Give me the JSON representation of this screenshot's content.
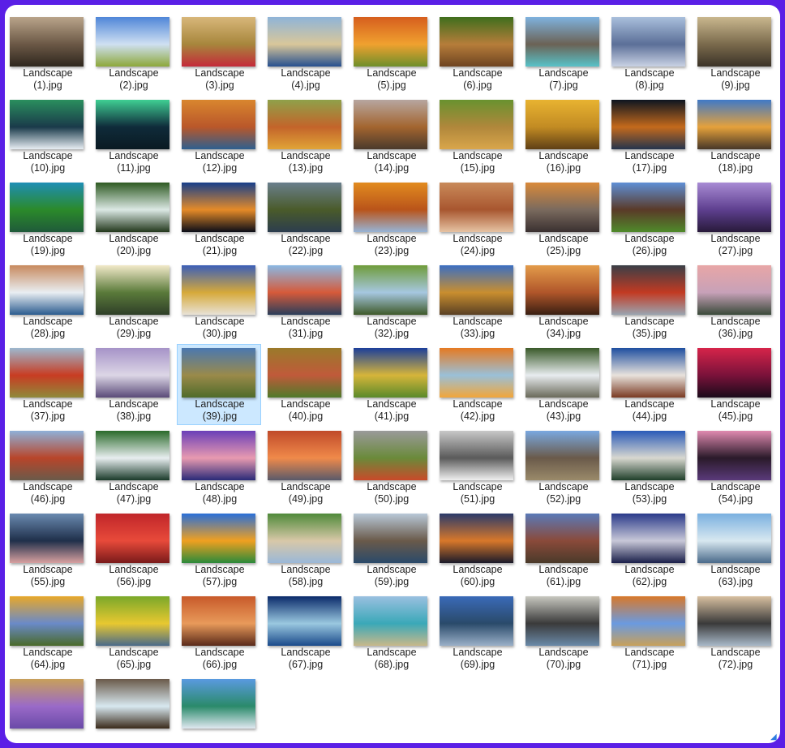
{
  "file_prefix": "Landscape",
  "selected_index": 39,
  "file_count": 75,
  "files": [
    {
      "line1": "Landscape",
      "line2": "(1).jpg",
      "colors": [
        "#b9a48a",
        "#6b5846",
        "#2f271e"
      ]
    },
    {
      "line1": "Landscape",
      "line2": "(2).jpg",
      "colors": [
        "#4f86d8",
        "#cfe0f2",
        "#8da83a"
      ]
    },
    {
      "line1": "Landscape",
      "line2": "(3).jpg",
      "colors": [
        "#d8b77a",
        "#a7863c",
        "#c42a3a"
      ]
    },
    {
      "line1": "Landscape",
      "line2": "(4).jpg",
      "colors": [
        "#8fb4d8",
        "#d9c79a",
        "#27508f"
      ]
    },
    {
      "line1": "Landscape",
      "line2": "(5).jpg",
      "colors": [
        "#d65e1e",
        "#f0a12f",
        "#6e8f2a"
      ]
    },
    {
      "line1": "Landscape",
      "line2": "(6).jpg",
      "colors": [
        "#3f6e1d",
        "#b67d3a",
        "#6e4421"
      ]
    },
    {
      "line1": "Landscape",
      "line2": "(7).jpg",
      "colors": [
        "#7fb2de",
        "#6b6255",
        "#58c2c8"
      ]
    },
    {
      "line1": "Landscape",
      "line2": "(8).jpg",
      "colors": [
        "#a9bfdc",
        "#5b6f98",
        "#c9d2e4"
      ]
    },
    {
      "line1": "Landscape",
      "line2": "(9).jpg",
      "colors": [
        "#c9b78e",
        "#7a6a4c",
        "#3b3328"
      ]
    },
    {
      "line1": "Landscape",
      "line2": "(10).jpg",
      "colors": [
        "#2a8f5e",
        "#1a3a4a",
        "#e8eef4"
      ]
    },
    {
      "line1": "Landscape",
      "line2": "(11).jpg",
      "colors": [
        "#3fcf93",
        "#0f2b3a",
        "#0a1a22"
      ]
    },
    {
      "line1": "Landscape",
      "line2": "(12).jpg",
      "colors": [
        "#d9862e",
        "#b9572a",
        "#2e5f8f"
      ]
    },
    {
      "line1": "Landscape",
      "line2": "(13).jpg",
      "colors": [
        "#8fa14a",
        "#c3642a",
        "#e1a437"
      ]
    },
    {
      "line1": "Landscape",
      "line2": "(14).jpg",
      "colors": [
        "#b7a6a0",
        "#a3652f",
        "#4a3a2c"
      ]
    },
    {
      "line1": "Landscape",
      "line2": "(15).jpg",
      "colors": [
        "#69922f",
        "#b0873b",
        "#d9a64b"
      ]
    },
    {
      "line1": "Landscape",
      "line2": "(16).jpg",
      "colors": [
        "#e8b331",
        "#c28b23",
        "#5f3f15"
      ]
    },
    {
      "line1": "Landscape",
      "line2": "(17).jpg",
      "colors": [
        "#0d1520",
        "#c46a1c",
        "#25344c"
      ]
    },
    {
      "line1": "Landscape",
      "line2": "(18).jpg",
      "colors": [
        "#3f79c7",
        "#e5a13b",
        "#473728"
      ]
    },
    {
      "line1": "Landscape",
      "line2": "(19).jpg",
      "colors": [
        "#1e8eb5",
        "#2b8a2a",
        "#1f5a3a"
      ]
    },
    {
      "line1": "Landscape",
      "line2": "(20).jpg",
      "colors": [
        "#2e5a22",
        "#dbe8e4",
        "#23381c"
      ]
    },
    {
      "line1": "Landscape",
      "line2": "(21).jpg",
      "colors": [
        "#173f8a",
        "#e58b28",
        "#0b0d18"
      ]
    },
    {
      "line1": "Landscape",
      "line2": "(22).jpg",
      "colors": [
        "#6a7f8c",
        "#4a5b2a",
        "#2c3d4e"
      ]
    },
    {
      "line1": "Landscape",
      "line2": "(23).jpg",
      "colors": [
        "#e28b1f",
        "#b9541a",
        "#97b4d6"
      ]
    },
    {
      "line1": "Landscape",
      "line2": "(24).jpg",
      "colors": [
        "#c98a5a",
        "#a8562f",
        "#e6c3a3"
      ]
    },
    {
      "line1": "Landscape",
      "line2": "(25).jpg",
      "colors": [
        "#d98a3a",
        "#7a6a5e",
        "#3a3030"
      ]
    },
    {
      "line1": "Landscape",
      "line2": "(26).jpg",
      "colors": [
        "#5f8fd6",
        "#5a3a28",
        "#4f8a2a"
      ]
    },
    {
      "line1": "Landscape",
      "line2": "(27).jpg",
      "colors": [
        "#a88bd4",
        "#5e3f8f",
        "#281a3a"
      ]
    },
    {
      "line1": "Landscape",
      "line2": "(28).jpg",
      "colors": [
        "#c78a5e",
        "#e9eef2",
        "#2b5c8f"
      ]
    },
    {
      "line1": "Landscape",
      "line2": "(29).jpg",
      "colors": [
        "#f2e9c9",
        "#5a7a3a",
        "#2f3f28"
      ]
    },
    {
      "line1": "Landscape",
      "line2": "(30).jpg",
      "colors": [
        "#3b5fb8",
        "#d6a93a",
        "#e8e2d6"
      ]
    },
    {
      "line1": "Landscape",
      "line2": "(31).jpg",
      "colors": [
        "#8ab8e4",
        "#d65a3a",
        "#2a3e5a"
      ]
    },
    {
      "line1": "Landscape",
      "line2": "(32).jpg",
      "colors": [
        "#6f9c3a",
        "#a6c7e0",
        "#3f5a2a"
      ]
    },
    {
      "line1": "Landscape",
      "line2": "(33).jpg",
      "colors": [
        "#3b6fc2",
        "#c98e2f",
        "#5a4024"
      ]
    },
    {
      "line1": "Landscape",
      "line2": "(34).jpg",
      "colors": [
        "#e39b4a",
        "#b0562a",
        "#3a1f12"
      ]
    },
    {
      "line1": "Landscape",
      "line2": "(35).jpg",
      "colors": [
        "#3a3f47",
        "#c23a22",
        "#9aa4b0"
      ]
    },
    {
      "line1": "Landscape",
      "line2": "(36).jpg",
      "colors": [
        "#e8a6a6",
        "#c7a1b8",
        "#3a4a3a"
      ]
    },
    {
      "line1": "Landscape",
      "line2": "(37).jpg",
      "colors": [
        "#9db8cf",
        "#c83c22",
        "#8f8a3a"
      ]
    },
    {
      "line1": "Landscape",
      "line2": "(38).jpg",
      "colors": [
        "#a693c8",
        "#dcd6e6",
        "#5a4a78"
      ]
    },
    {
      "line1": "Landscape",
      "line2": "(39).jpg",
      "colors": [
        "#4b78b0",
        "#9a8a4a",
        "#4f6b2a"
      ]
    },
    {
      "line1": "Landscape",
      "line2": "(40).jpg",
      "colors": [
        "#9a7a2a",
        "#c05a3a",
        "#4f7a2a"
      ]
    },
    {
      "line1": "Landscape",
      "line2": "(41).jpg",
      "colors": [
        "#1c3f9a",
        "#d6b53a",
        "#5a8a2a"
      ]
    },
    {
      "line1": "Landscape",
      "line2": "(42).jpg",
      "colors": [
        "#e57a22",
        "#9ac0d8",
        "#f2a63a"
      ]
    },
    {
      "line1": "Landscape",
      "line2": "(43).jpg",
      "colors": [
        "#3a5a2a",
        "#e8ecef",
        "#6a6a5a"
      ]
    },
    {
      "line1": "Landscape",
      "line2": "(44).jpg",
      "colors": [
        "#1f4fa0",
        "#e8e2dc",
        "#7a3a22"
      ]
    },
    {
      "line1": "Landscape",
      "line2": "(45).jpg",
      "colors": [
        "#d6244a",
        "#7a123a",
        "#1a0a1a"
      ]
    },
    {
      "line1": "Landscape",
      "line2": "(46).jpg",
      "colors": [
        "#8fb0d8",
        "#b8452a",
        "#6a5a4a"
      ]
    },
    {
      "line1": "Landscape",
      "line2": "(47).jpg",
      "colors": [
        "#2a6a2a",
        "#e8eef0",
        "#1a3a2a"
      ]
    },
    {
      "line1": "Landscape",
      "line2": "(48).jpg",
      "colors": [
        "#6a3fb8",
        "#e89ab0",
        "#2a2a78"
      ]
    },
    {
      "line1": "Landscape",
      "line2": "(49).jpg",
      "colors": [
        "#c04a2a",
        "#f08a4a",
        "#5a5a6a"
      ]
    },
    {
      "line1": "Landscape",
      "line2": "(50).jpg",
      "colors": [
        "#9a9a9a",
        "#6a8a3a",
        "#c94a2a"
      ]
    },
    {
      "line1": "Landscape",
      "line2": "(51).jpg",
      "colors": [
        "#c8c8c8",
        "#5a5a5a",
        "#f0f0f0"
      ]
    },
    {
      "line1": "Landscape",
      "line2": "(52).jpg",
      "colors": [
        "#7aa8e0",
        "#6a5a4a",
        "#9a8a6a"
      ]
    },
    {
      "line1": "Landscape",
      "line2": "(53).jpg",
      "colors": [
        "#2a5ab8",
        "#d8d8d0",
        "#1f3f2a"
      ]
    },
    {
      "line1": "Landscape",
      "line2": "(54).jpg",
      "colors": [
        "#e08ab0",
        "#2a1a2a",
        "#5a3a7a"
      ]
    },
    {
      "line1": "Landscape",
      "line2": "(55).jpg",
      "colors": [
        "#6a8ab0",
        "#1f2f4a",
        "#d8a0a0"
      ]
    },
    {
      "line1": "Landscape",
      "line2": "(56).jpg",
      "colors": [
        "#c0262a",
        "#e84a3a",
        "#7a1a1a"
      ]
    },
    {
      "line1": "Landscape",
      "line2": "(57).jpg",
      "colors": [
        "#2a6fd8",
        "#f0a020",
        "#2a8a3a"
      ]
    },
    {
      "line1": "Landscape",
      "line2": "(58).jpg",
      "colors": [
        "#4f8a3a",
        "#d8c8a8",
        "#9ab8d8"
      ]
    },
    {
      "line1": "Landscape",
      "line2": "(59).jpg",
      "colors": [
        "#b8c8d8",
        "#6a5a4a",
        "#2a4a6a"
      ]
    },
    {
      "line1": "Landscape",
      "line2": "(60).jpg",
      "colors": [
        "#2a3a6a",
        "#d8782a",
        "#1a1a2a"
      ]
    },
    {
      "line1": "Landscape",
      "line2": "(61).jpg",
      "colors": [
        "#5a7ab8",
        "#8a4a3a",
        "#4a3a2a"
      ]
    },
    {
      "line1": "Landscape",
      "line2": "(62).jpg",
      "colors": [
        "#2a3a8a",
        "#c8c8d8",
        "#1a1f4a"
      ]
    },
    {
      "line1": "Landscape",
      "line2": "(63).jpg",
      "colors": [
        "#7ab0e0",
        "#d8e8f0",
        "#4a6a8a"
      ]
    },
    {
      "line1": "Landscape",
      "line2": "(64).jpg",
      "colors": [
        "#e8a82a",
        "#6a8ac8",
        "#4a6a2a"
      ]
    },
    {
      "line1": "Landscape",
      "line2": "(65).jpg",
      "colors": [
        "#7aa82a",
        "#e8c830",
        "#4a6a8a"
      ]
    },
    {
      "line1": "Landscape",
      "line2": "(66).jpg",
      "colors": [
        "#c85a2a",
        "#e89a5a",
        "#5a2a1a"
      ]
    },
    {
      "line1": "Landscape",
      "line2": "(67).jpg",
      "colors": [
        "#0a2a6a",
        "#9ac8e0",
        "#1a4a8a"
      ]
    },
    {
      "line1": "Landscape",
      "line2": "(68).jpg",
      "colors": [
        "#9ac0e0",
        "#3aa8b8",
        "#c8b88a"
      ]
    },
    {
      "line1": "Landscape",
      "line2": "(69).jpg",
      "colors": [
        "#3a6ab8",
        "#2a4a6a",
        "#9ab0c8"
      ]
    },
    {
      "line1": "Landscape",
      "line2": "(70).jpg",
      "colors": [
        "#c8c8c0",
        "#3a3a3a",
        "#6a8aa8"
      ]
    },
    {
      "line1": "Landscape",
      "line2": "(71).jpg",
      "colors": [
        "#d8782a",
        "#6a9ae0",
        "#c8a05a"
      ]
    },
    {
      "line1": "Landscape",
      "line2": "(72).jpg",
      "colors": [
        "#d8c0a0",
        "#3a3a3a",
        "#a8b8c8"
      ]
    },
    {
      "line1": "",
      "line2": "",
      "colors": [
        "#c8a05a",
        "#9a6ac8",
        "#6a4aa8"
      ]
    },
    {
      "line1": "",
      "line2": "",
      "colors": [
        "#6a5a4a",
        "#d8e8f0",
        "#3a2a1a"
      ]
    },
    {
      "line1": "",
      "line2": "",
      "colors": [
        "#5a9ae0",
        "#2a8a6a",
        "#e0e8f0"
      ]
    }
  ]
}
